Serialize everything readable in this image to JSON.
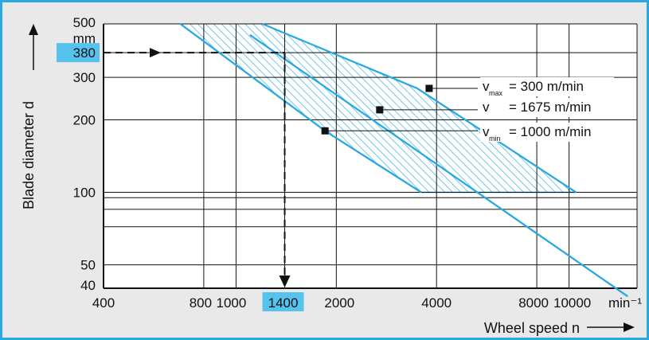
{
  "chart_data": {
    "type": "line",
    "xlabel": "Wheel speed n",
    "ylabel": "Blade diameter d",
    "x_unit": "min⁻¹",
    "y_unit": "mm",
    "x_scale": "log",
    "y_scale": "log",
    "xlim": [
      400,
      16000
    ],
    "ylim": [
      40,
      500
    ],
    "grid": true,
    "x_ticks": [
      {
        "value": 400,
        "label": "400"
      },
      {
        "value": 800,
        "label": "800"
      },
      {
        "value": 1000,
        "label": "1000"
      },
      {
        "value": 1400,
        "label": "1400",
        "highlight": true
      },
      {
        "value": 2000,
        "label": "2000"
      },
      {
        "value": 4000,
        "label": "4000"
      },
      {
        "value": 8000,
        "label": "8000"
      },
      {
        "value": 10000,
        "label": "10000"
      }
    ],
    "y_ticks": [
      {
        "value": 500,
        "label": "500"
      },
      {
        "value": 380,
        "label": "380",
        "highlight": true
      },
      {
        "value": 300,
        "label": "300"
      },
      {
        "value": 200,
        "label": "200"
      },
      {
        "value": 100,
        "label": "100"
      },
      {
        "value": 50,
        "label": "50"
      },
      {
        "value": 40,
        "label": "40"
      }
    ],
    "y_grid_extra": [
      95,
      85,
      72
    ],
    "series": [
      {
        "name": "v max",
        "label_sub": "max",
        "label_value": "= 300 m/min",
        "x": [
          1200,
          3500,
          10500
        ],
        "y": [
          500,
          270,
          100
        ],
        "marker": {
          "x": 3800,
          "y": 270
        }
      },
      {
        "name": "v",
        "label_sub": "",
        "label_value": "= 1675 m/min",
        "x": [
          1100,
          15000
        ],
        "y": [
          450,
          37
        ],
        "marker": {
          "x": 2700,
          "y": 220
        }
      },
      {
        "name": "v min",
        "label_sub": "min",
        "label_value": "= 1000 m/min",
        "x": [
          680,
          1850,
          3600
        ],
        "y": [
          500,
          180,
          100
        ],
        "marker": {
          "x": 1850,
          "y": 180
        }
      }
    ],
    "shaded_band": {
      "between": [
        "v min",
        "v max"
      ],
      "y_range": [
        100,
        500
      ]
    },
    "example": {
      "x": 1400,
      "y": 380
    },
    "colors": {
      "line": "#29a9e0",
      "highlight": "#55c3ee",
      "frame": "#29a9e0",
      "plot_bg": "#ffffff"
    }
  }
}
